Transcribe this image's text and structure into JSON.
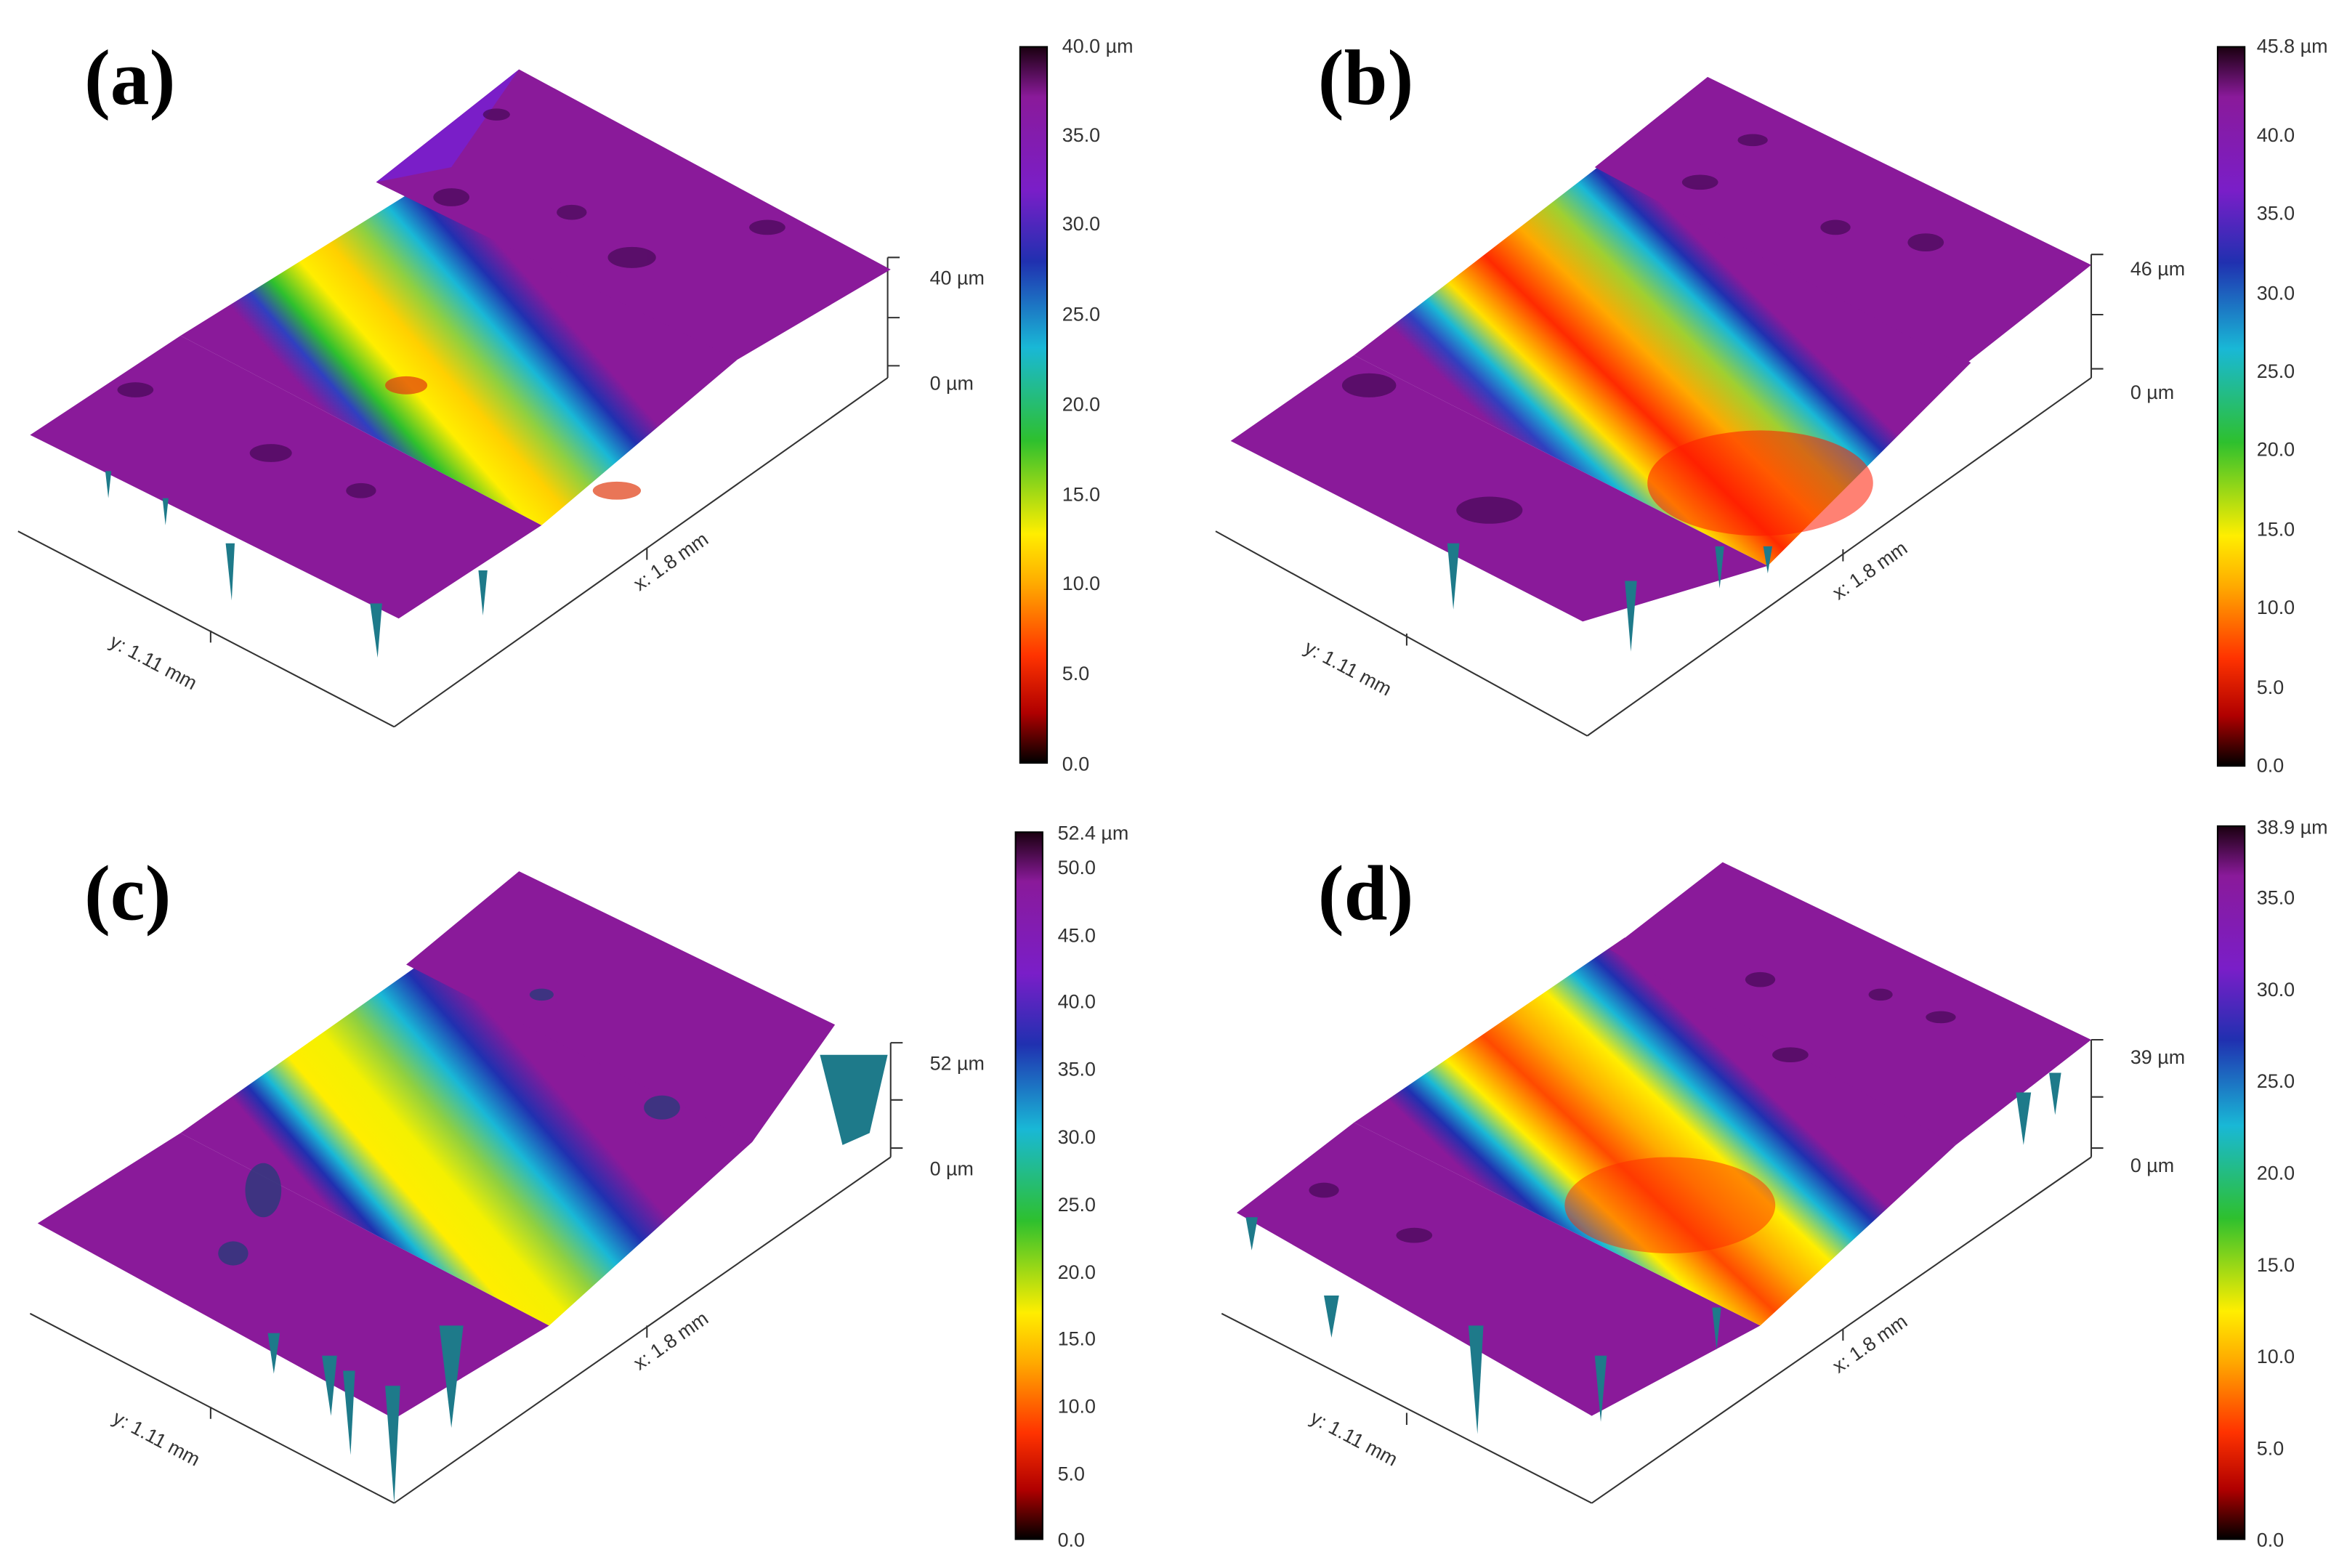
{
  "panels": [
    {
      "id": "a",
      "label": "(a)",
      "y_axis_label": "y: 1.11 mm",
      "x_axis_label": "x: 1.8 mm",
      "z_axis_labels": [
        "40 µm",
        "0 µm"
      ],
      "colorbar_max_label": "40.0 µm",
      "colorbar_ticks": [
        "35.0",
        "30.0",
        "25.0",
        "20.0",
        "15.0",
        "10.0",
        "5.0",
        "0.0"
      ]
    },
    {
      "id": "b",
      "label": "(b)",
      "y_axis_label": "y: 1.11 mm",
      "x_axis_label": "x: 1.8 mm",
      "z_axis_labels": [
        "46 µm",
        "0 µm"
      ],
      "colorbar_max_label": "45.8 µm",
      "colorbar_ticks": [
        "40.0",
        "35.0",
        "30.0",
        "25.0",
        "20.0",
        "15.0",
        "10.0",
        "5.0",
        "0.0"
      ]
    },
    {
      "id": "c",
      "label": "(c)",
      "y_axis_label": "y: 1.11 mm",
      "x_axis_label": "x: 1.8 mm",
      "z_axis_labels": [
        "52 µm",
        "0 µm"
      ],
      "colorbar_max_label": "52.4 µm",
      "colorbar_ticks": [
        "50.0",
        "45.0",
        "40.0",
        "35.0",
        "30.0",
        "25.0",
        "20.0",
        "15.0",
        "10.0",
        "5.0",
        "0.0"
      ]
    },
    {
      "id": "d",
      "label": "(d)",
      "y_axis_label": "y: 1.11 mm",
      "x_axis_label": "x: 1.8 mm",
      "z_axis_labels": [
        "39 µm",
        "0 µm"
      ],
      "colorbar_max_label": "38.9 µm",
      "colorbar_ticks": [
        "35.0",
        "30.0",
        "25.0",
        "20.0",
        "15.0",
        "10.0",
        "5.0",
        "0.0"
      ]
    }
  ],
  "colormap": [
    "#000000",
    "#d10000",
    "#ff6600",
    "#ffee00",
    "#2ec02e",
    "#19b8d6",
    "#2030b0",
    "#7a1ec8",
    "#8a1a9a",
    "#000000"
  ],
  "chart_data": [
    {
      "type": "surface3d",
      "panel": "a",
      "x_extent": "1.8 mm",
      "y_extent": "1.11 mm",
      "z_range": [
        0,
        40.0
      ],
      "colorbar_range": [
        0,
        40.0
      ],
      "colorbar_ticks": [
        0,
        5,
        10,
        15,
        20,
        25,
        30,
        35
      ],
      "surface_description_values": {
        "groove_depth_um": 40,
        "plateau_height_um": 36
      }
    },
    {
      "type": "surface3d",
      "panel": "b",
      "x_extent": "1.8 mm",
      "y_extent": "1.11 mm",
      "z_range": [
        0,
        45.8
      ],
      "colorbar_range": [
        0,
        45.8
      ],
      "colorbar_ticks": [
        0,
        5,
        10,
        15,
        20,
        25,
        30,
        35,
        40
      ],
      "surface_description_values": {
        "groove_depth_um": 46,
        "plateau_height_um": 38
      }
    },
    {
      "type": "surface3d",
      "panel": "c",
      "x_extent": "1.8 mm",
      "y_extent": "1.11 mm",
      "z_range": [
        0,
        52.4
      ],
      "colorbar_range": [
        0,
        52.4
      ],
      "colorbar_ticks": [
        0,
        5,
        10,
        15,
        20,
        25,
        30,
        35,
        40,
        45,
        50
      ],
      "surface_description_values": {
        "groove_depth_um": 52,
        "plateau_height_um": 46
      }
    },
    {
      "type": "surface3d",
      "panel": "d",
      "x_extent": "1.8 mm",
      "y_extent": "1.11 mm",
      "z_range": [
        0,
        38.9
      ],
      "colorbar_range": [
        0,
        38.9
      ],
      "colorbar_ticks": [
        0,
        5,
        10,
        15,
        20,
        25,
        30,
        35
      ],
      "surface_description_values": {
        "groove_depth_um": 39,
        "plateau_height_um": 35
      }
    }
  ]
}
